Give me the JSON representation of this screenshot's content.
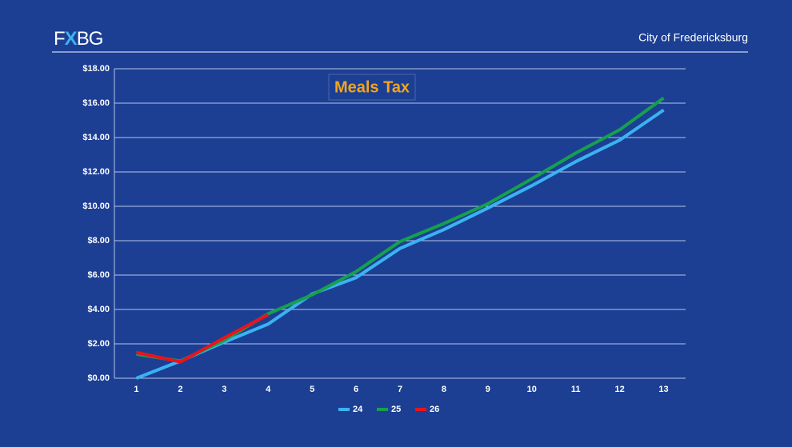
{
  "header": {
    "logo": [
      "F",
      "X",
      "BG"
    ],
    "organization": "City of Fredericksburg"
  },
  "chart_data": {
    "type": "line",
    "title": "Meals Tax",
    "categories": [
      "1",
      "2",
      "3",
      "4",
      "5",
      "6",
      "7",
      "8",
      "9",
      "10",
      "11",
      "12",
      "13"
    ],
    "series": [
      {
        "name": "24",
        "color": "#3bb2f2",
        "values": [
          0,
          1.0,
          2.1,
          3.15,
          4.9,
          5.85,
          7.55,
          8.65,
          9.9,
          11.2,
          12.6,
          13.85,
          15.6
        ]
      },
      {
        "name": "25",
        "color": "#16a04c",
        "values": [
          1.4,
          1.0,
          2.2,
          3.75,
          4.85,
          6.2,
          7.95,
          9.0,
          10.15,
          11.6,
          13.1,
          14.45,
          16.3
        ]
      },
      {
        "name": "26",
        "color": "#e8141c",
        "values": [
          1.5,
          0.95,
          2.35,
          3.7,
          null,
          null,
          null,
          null,
          null,
          null,
          null,
          null,
          null
        ]
      }
    ],
    "ylim": [
      0,
      18
    ],
    "yticks": [
      {
        "value": 0,
        "label": "$0.00"
      },
      {
        "value": 2,
        "label": "$2.00"
      },
      {
        "value": 4,
        "label": "$4.00"
      },
      {
        "value": 6,
        "label": "$6.00"
      },
      {
        "value": 8,
        "label": "$8.00"
      },
      {
        "value": 10,
        "label": "$10.00"
      },
      {
        "value": 12,
        "label": "$12.00"
      },
      {
        "value": 14,
        "label": "$14.00"
      },
      {
        "value": 16,
        "label": "$16.00"
      },
      {
        "value": 18,
        "label": "$18.00"
      }
    ],
    "grid": true,
    "legend": "bottom"
  }
}
